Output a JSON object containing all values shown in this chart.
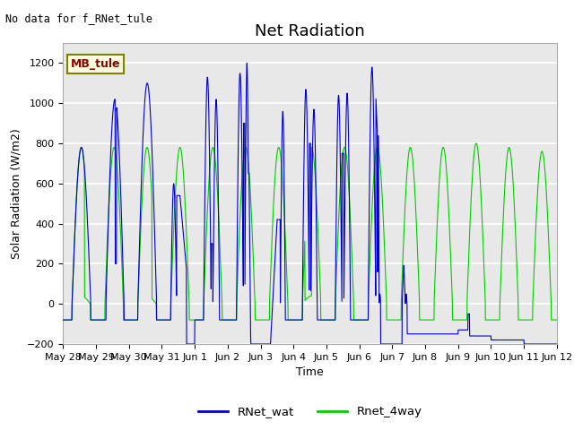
{
  "title": "Net Radiation",
  "xlabel": "Time",
  "ylabel": "Solar Radiation (W/m2)",
  "annotation_text": "No data for f_RNet_tule",
  "legend_label": "MB_tule",
  "line1_label": "RNet_wat",
  "line2_label": "Rnet_4way",
  "line1_color": "#0000cc",
  "line2_color": "#00cc00",
  "ylim": [
    -200,
    1300
  ],
  "yticks": [
    -200,
    0,
    200,
    400,
    600,
    800,
    1000,
    1200
  ],
  "plot_bg_color": "#e8e8e8",
  "grid_color": "white",
  "title_fontsize": 13,
  "label_fontsize": 9,
  "tick_fontsize": 8,
  "x_tick_labels": [
    "May 28",
    "May 29",
    "May 30",
    "May 31",
    "Jun 1",
    "Jun 2",
    "Jun 3",
    "Jun 4",
    "Jun 5",
    "Jun 6",
    "Jun 7",
    "Jun 8",
    "Jun 9",
    "Jun 10",
    "Jun 11",
    "Jun 12"
  ]
}
